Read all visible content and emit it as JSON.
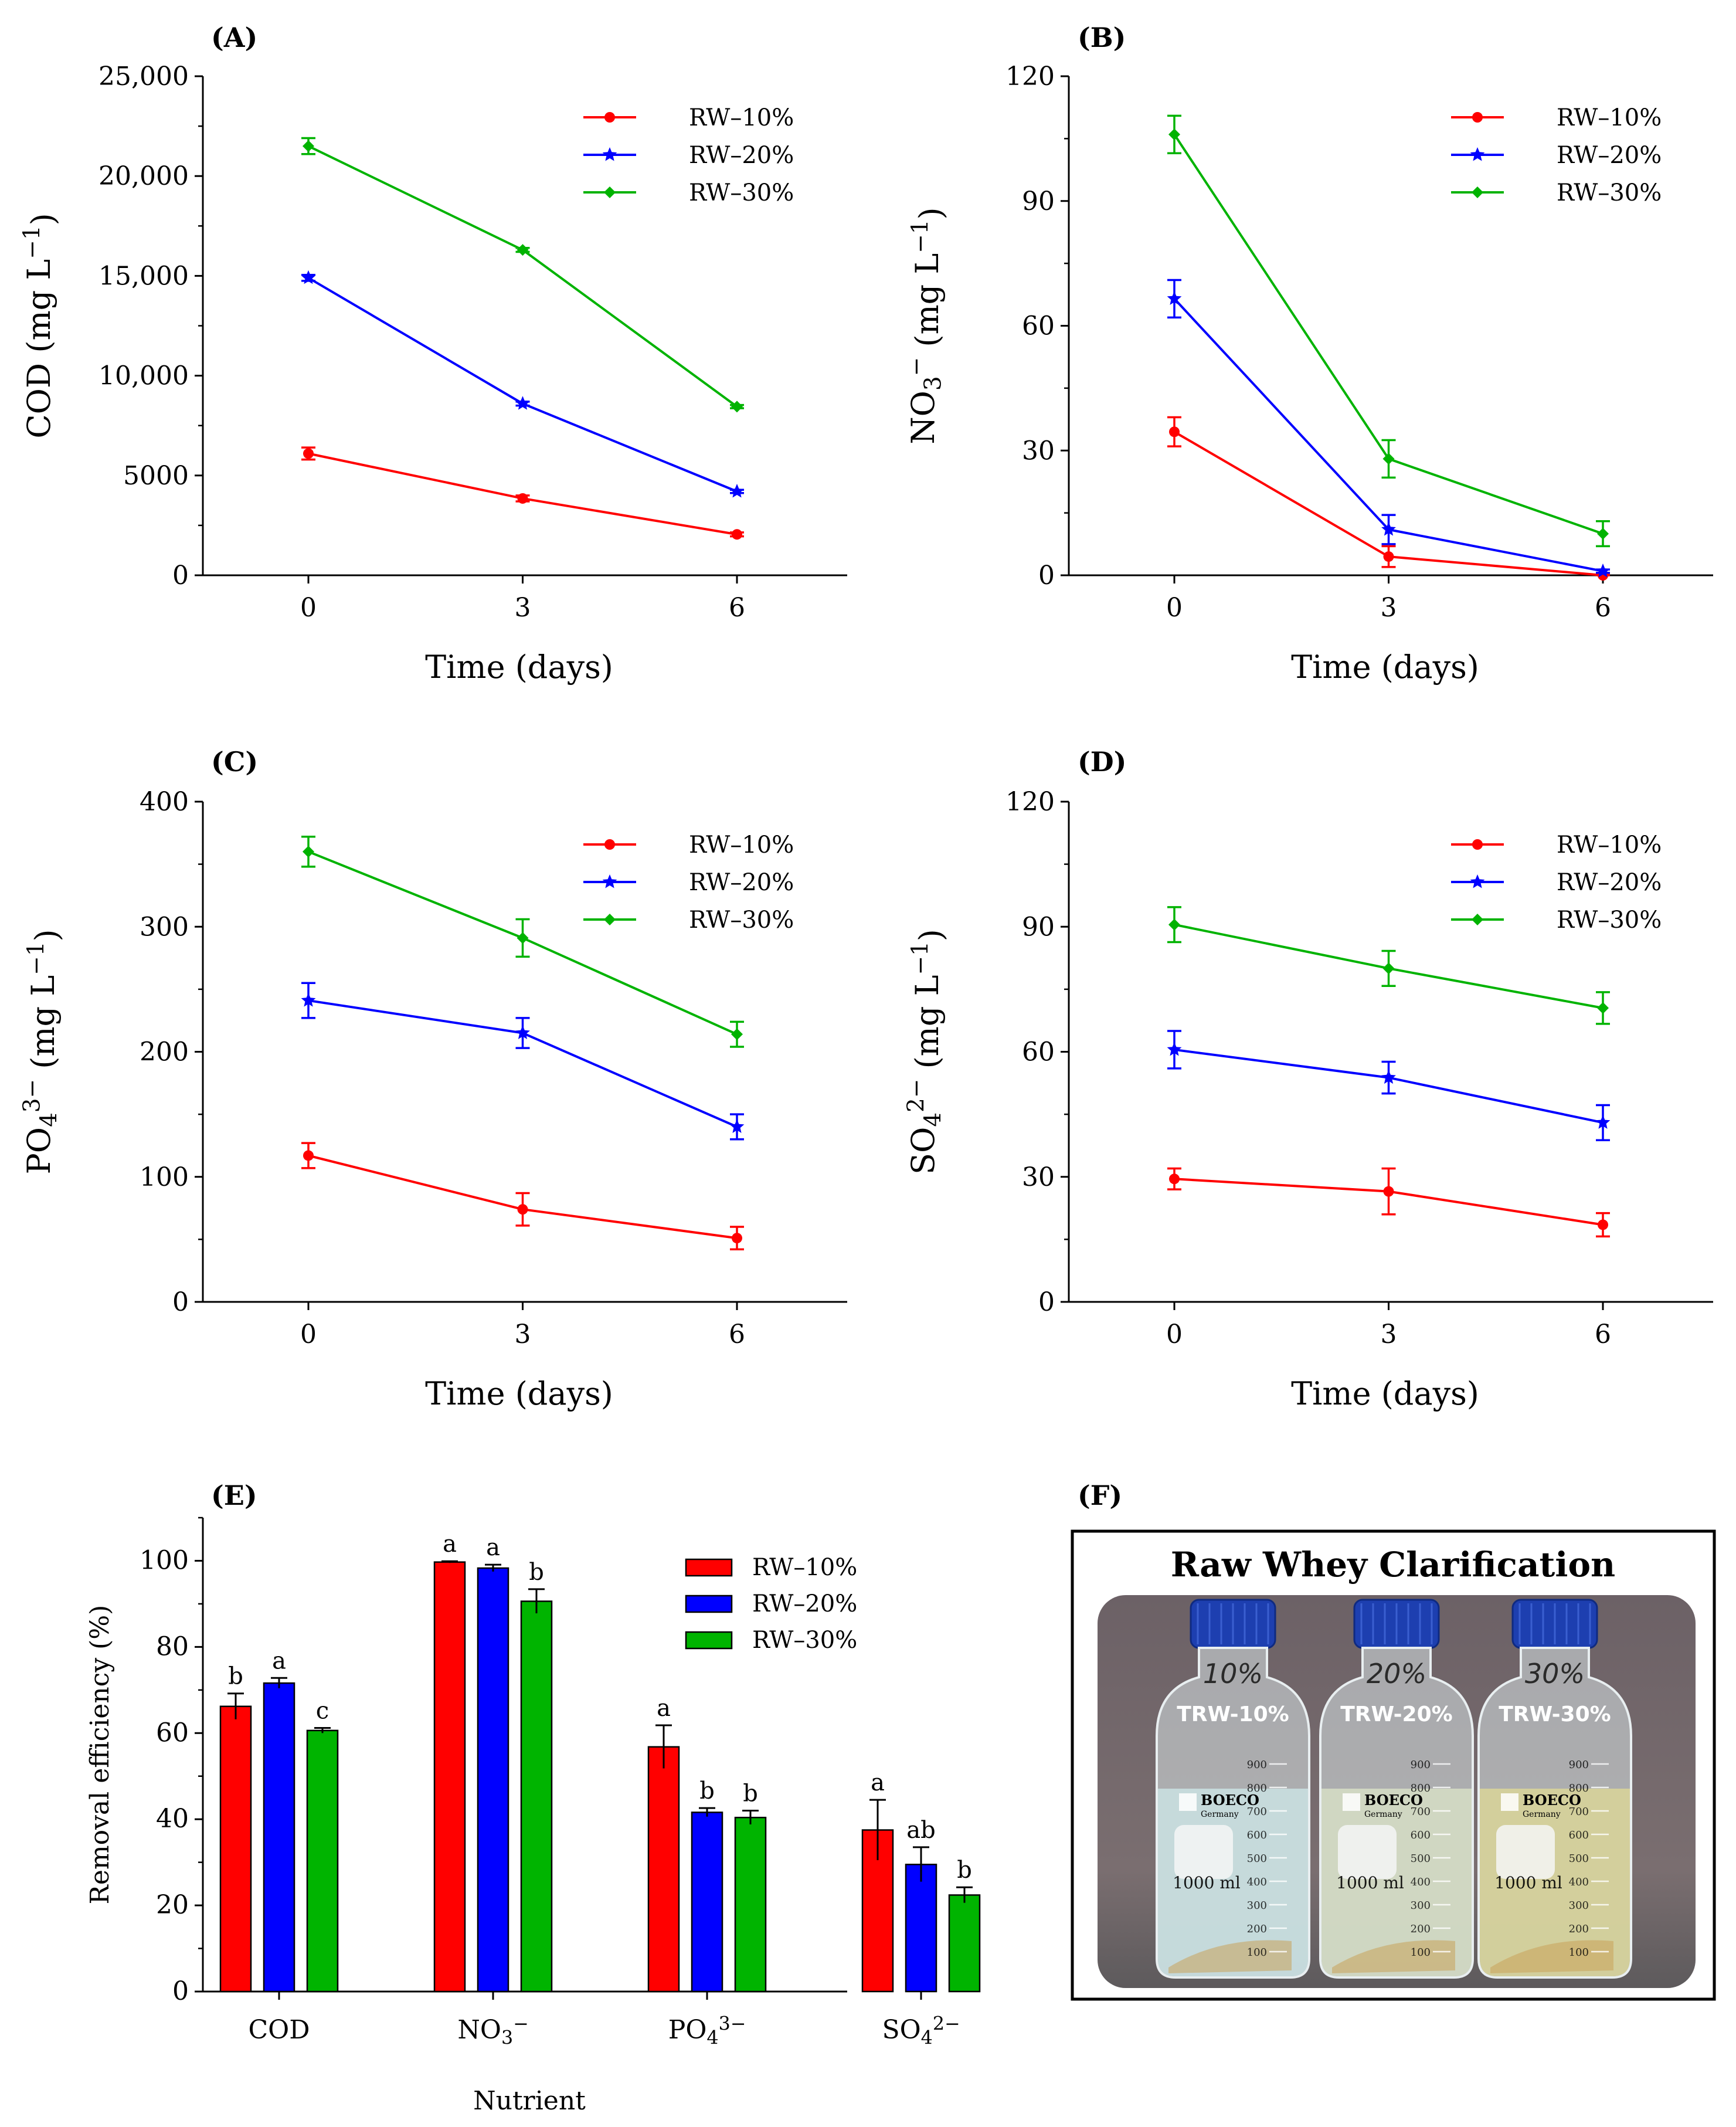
{
  "chart_data": [
    {
      "panel": "(A)",
      "type": "line",
      "xlabel": "Time (days)",
      "ylabel": "COD (mg L−1)",
      "x": [
        0,
        3,
        6
      ],
      "ylim": [
        0,
        25000
      ],
      "yticks": [
        0,
        5000,
        10000,
        15000,
        20000,
        25000
      ],
      "ytick_labels": [
        "0",
        "5000",
        "10,000",
        "15,000",
        "20,000",
        "25,000"
      ],
      "series": [
        {
          "name": "RW–10%",
          "color": "#ff0000",
          "marker": "circle",
          "values": [
            6100,
            3850,
            2050
          ],
          "errors": [
            300,
            150,
            100
          ]
        },
        {
          "name": "RW–20%",
          "color": "#0000ff",
          "marker": "star",
          "values": [
            14900,
            8600,
            4200
          ],
          "errors": [
            150,
            100,
            80
          ]
        },
        {
          "name": "RW–30%",
          "color": "#00b300",
          "marker": "diamond",
          "values": [
            21500,
            16300,
            8450
          ],
          "errors": [
            400,
            100,
            80
          ]
        }
      ]
    },
    {
      "panel": "(B)",
      "type": "line",
      "xlabel": "Time (days)",
      "ylabel": "NO3− (mg L−1)",
      "x": [
        0,
        3,
        6
      ],
      "ylim": [
        0,
        120
      ],
      "yticks": [
        0,
        30,
        60,
        90,
        120
      ],
      "ytick_labels": [
        "0",
        "30",
        "60",
        "90",
        "120"
      ],
      "series": [
        {
          "name": "RW–10%",
          "color": "#ff0000",
          "marker": "circle",
          "values": [
            34.5,
            4.5,
            0
          ],
          "errors": [
            3.5,
            2.5,
            0.2
          ]
        },
        {
          "name": "RW–20%",
          "color": "#0000ff",
          "marker": "star",
          "values": [
            66.5,
            11,
            1
          ],
          "errors": [
            4.5,
            3.5,
            0.4
          ]
        },
        {
          "name": "RW–30%",
          "color": "#00b300",
          "marker": "diamond",
          "values": [
            106,
            28,
            10
          ],
          "errors": [
            4.5,
            4.5,
            3
          ]
        }
      ]
    },
    {
      "panel": "(C)",
      "type": "line",
      "xlabel": "Time (days)",
      "ylabel": "PO43− (mg L−1)",
      "x": [
        0,
        3,
        6
      ],
      "ylim": [
        0,
        400
      ],
      "yticks": [
        0,
        100,
        200,
        300,
        400
      ],
      "ytick_labels": [
        "0",
        "100",
        "200",
        "300",
        "400"
      ],
      "series": [
        {
          "name": "RW–10%",
          "color": "#ff0000",
          "marker": "circle",
          "values": [
            117,
            74,
            51
          ],
          "errors": [
            10,
            13,
            9
          ]
        },
        {
          "name": "RW–20%",
          "color": "#0000ff",
          "marker": "star",
          "values": [
            241,
            215,
            140
          ],
          "errors": [
            14,
            12,
            10
          ]
        },
        {
          "name": "RW–30%",
          "color": "#00b300",
          "marker": "diamond",
          "values": [
            360,
            291,
            214
          ],
          "errors": [
            12,
            15,
            10
          ]
        }
      ]
    },
    {
      "panel": "(D)",
      "type": "line",
      "xlabel": "Time (days)",
      "ylabel": "SO42− (mg L−1)",
      "x": [
        0,
        3,
        6
      ],
      "ylim": [
        0,
        120
      ],
      "yticks": [
        0,
        30,
        60,
        90,
        120
      ],
      "ytick_labels": [
        "0",
        "30",
        "60",
        "90",
        "120"
      ],
      "series": [
        {
          "name": "RW–10%",
          "color": "#ff0000",
          "marker": "circle",
          "values": [
            29.5,
            26.5,
            18.5
          ],
          "errors": [
            2.5,
            5.5,
            2.8
          ]
        },
        {
          "name": "RW–20%",
          "color": "#0000ff",
          "marker": "star",
          "values": [
            60.5,
            53.8,
            43
          ],
          "errors": [
            4.5,
            3.8,
            4.2
          ]
        },
        {
          "name": "RW–30%",
          "color": "#00b300",
          "marker": "diamond",
          "values": [
            90.5,
            80,
            70.5
          ],
          "errors": [
            4.2,
            4.2,
            3.8
          ]
        }
      ]
    },
    {
      "panel": "(E)",
      "type": "bar",
      "xlabel": "Nutrient",
      "ylabel": "Removal efficiency (%)",
      "categories": [
        "COD",
        "NO3−",
        "PO43−",
        "SO42−"
      ],
      "ylim": [
        0,
        110
      ],
      "yticks": [
        0,
        20,
        40,
        60,
        80,
        100
      ],
      "ytick_labels": [
        "0",
        "20",
        "40",
        "60",
        "80",
        "100"
      ],
      "series": [
        {
          "name": "RW–10%",
          "color": "#ff0000",
          "values": [
            66.2,
            99.7,
            56.8,
            37.5
          ],
          "errors": [
            3.0,
            0.2,
            5.0,
            7.0
          ],
          "letters": [
            "b",
            "a",
            "a",
            "a"
          ]
        },
        {
          "name": "RW–20%",
          "color": "#0000ff",
          "values": [
            71.6,
            98.3,
            41.6,
            29.5
          ],
          "errors": [
            1.2,
            0.8,
            1.0,
            4.0
          ],
          "letters": [
            "a",
            "a",
            "b",
            "ab"
          ]
        },
        {
          "name": "RW–30%",
          "color": "#00b400",
          "values": [
            60.6,
            90.6,
            40.4,
            22.4
          ],
          "errors": [
            0.6,
            2.8,
            1.6,
            1.8
          ],
          "letters": [
            "c",
            "b",
            "b",
            "b"
          ]
        }
      ]
    }
  ],
  "photo": {
    "panel": "(F)",
    "title": "Raw Whey Clarification",
    "bottles": [
      {
        "handwritten": "10%",
        "label": "TRW-10%",
        "liquid_color": "#c9dfe0"
      },
      {
        "handwritten": "20%",
        "label": "TRW-20%",
        "liquid_color": "#d4dcc4"
      },
      {
        "handwritten": "30%",
        "label": "TRW-30%",
        "liquid_color": "#d7d39a"
      }
    ],
    "brand": "BOECO",
    "brand_sub": "Germany",
    "volume_marks": [
      "100",
      "200",
      "300",
      "400",
      "500",
      "600",
      "700",
      "800",
      "900"
    ],
    "volume_label": "1000 ml",
    "colors": {
      "cap": "#1d3fb0",
      "background": "#6f6468",
      "frame": "#000000"
    }
  }
}
